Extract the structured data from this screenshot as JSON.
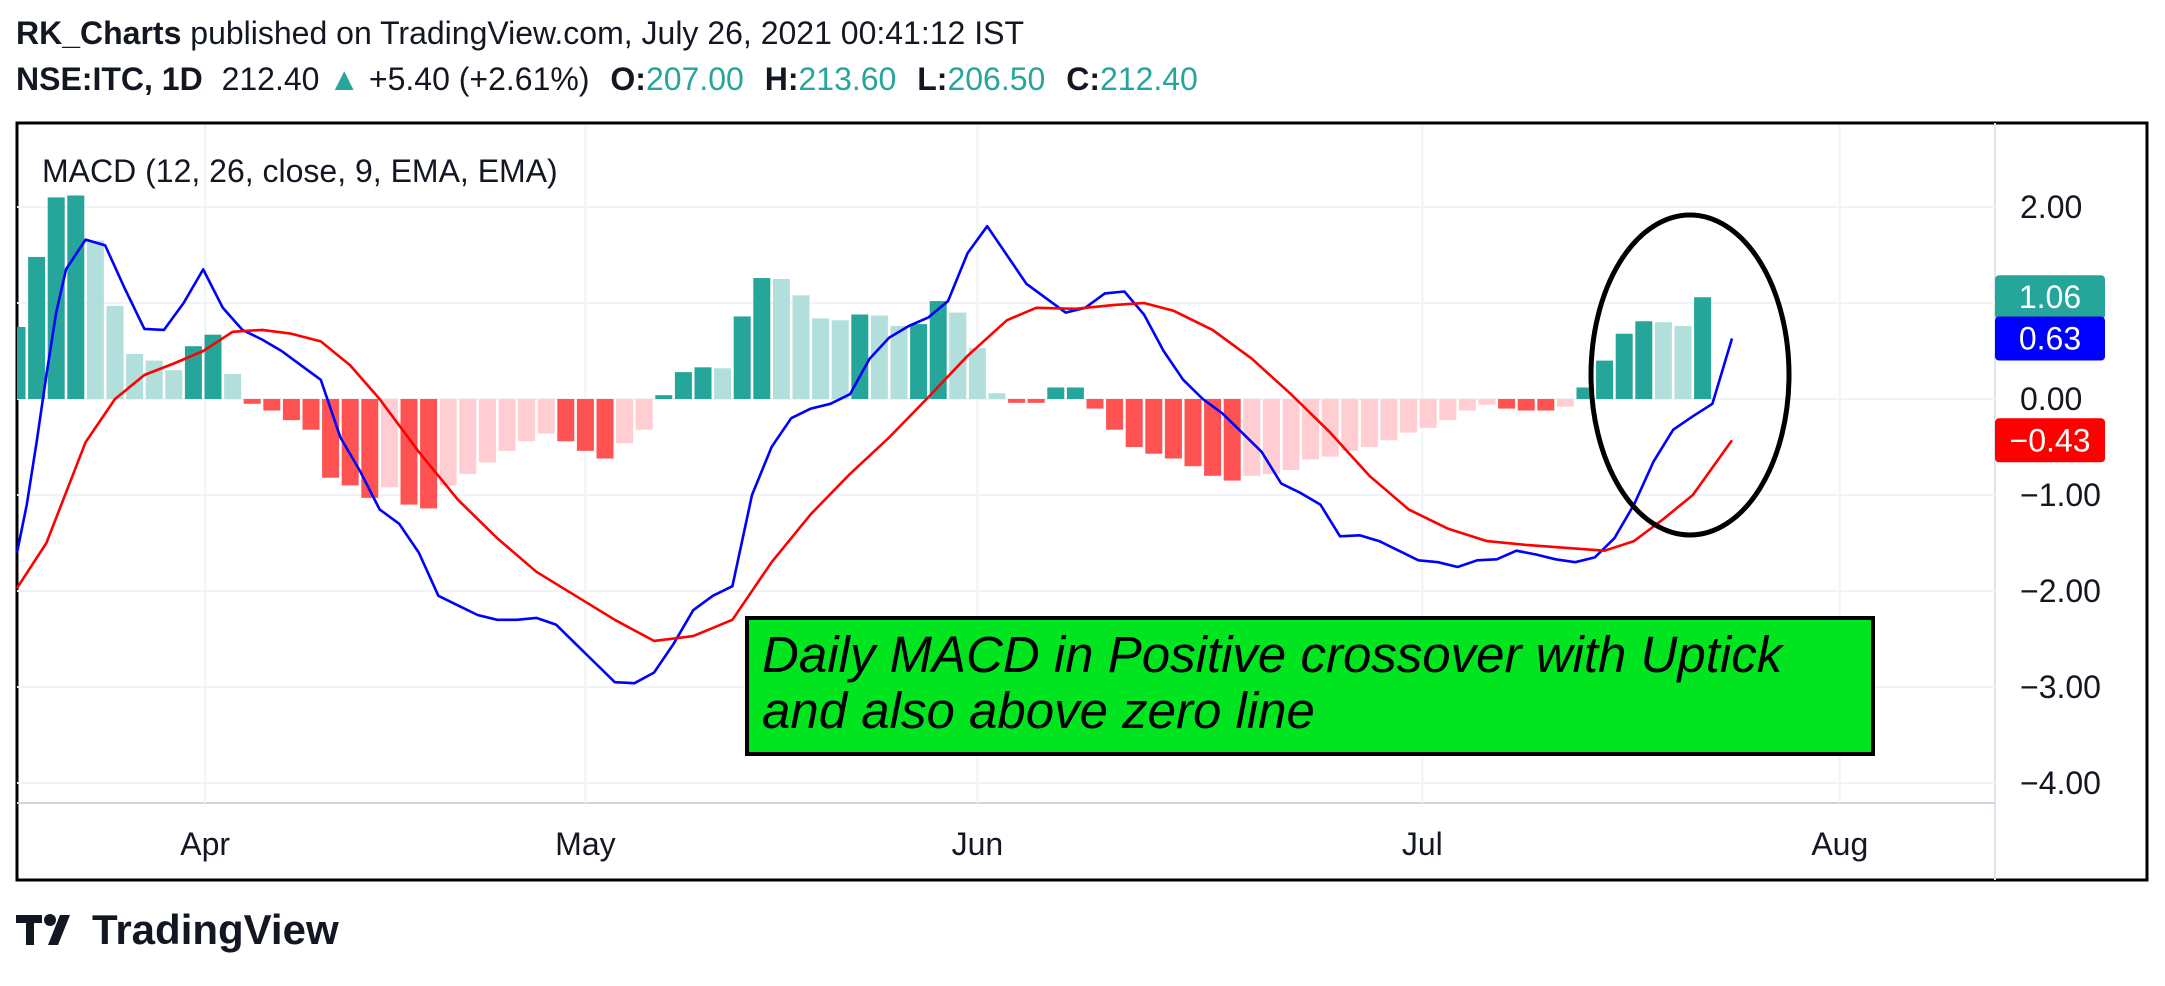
{
  "header": {
    "author": "RK_Charts",
    "published_text": "published on TradingView.com, July 26, 2021 00:41:12 IST",
    "symbol": "NSE:ITC, 1D",
    "price": "212.40",
    "change": "+5.40 (+2.61%)",
    "open_label": "O:",
    "open_value": "207.00",
    "high_label": "H:",
    "high_value": "213.60",
    "low_label": "L:",
    "low_value": "206.50",
    "close_label": "C:",
    "close_value": "212.40"
  },
  "chart_data": {
    "type": "bar",
    "title": "MACD (12, 26, close, 9, EMA, EMA)",
    "ylim": [
      -4.3,
      2.0
    ],
    "yticks": [
      "2.00",
      "1.00",
      "0.00",
      "−1.00",
      "−2.00",
      "−3.00",
      "−4.00"
    ],
    "ytick_values": [
      2,
      1,
      0,
      -1,
      -2,
      -3,
      -4
    ],
    "xticks": [
      "Apr",
      "May",
      "Jun",
      "Jul",
      "Aug"
    ],
    "xtick_positions": [
      9.6,
      29,
      49,
      71.7,
      93
    ],
    "grid": true,
    "histogram": [
      0.75,
      1.48,
      2.1,
      2.12,
      1.65,
      0.97,
      0.47,
      0.4,
      0.3,
      0.55,
      0.67,
      0.26,
      -0.05,
      -0.12,
      -0.22,
      -0.32,
      -0.82,
      -0.9,
      -1.03,
      -0.92,
      -1.1,
      -1.14,
      -0.9,
      -0.78,
      -0.66,
      -0.54,
      -0.44,
      -0.36,
      -0.44,
      -0.54,
      -0.62,
      -0.46,
      -0.32,
      0.04,
      0.28,
      0.33,
      0.32,
      0.86,
      1.26,
      1.25,
      1.08,
      0.84,
      0.82,
      0.88,
      0.87,
      0.76,
      0.78,
      1.02,
      0.9,
      0.53,
      0.06,
      -0.04,
      -0.04,
      0.12,
      0.12,
      -0.1,
      -0.32,
      -0.5,
      -0.57,
      -0.62,
      -0.7,
      -0.8,
      -0.85,
      -0.8,
      -0.78,
      -0.74,
      -0.63,
      -0.6,
      -0.54,
      -0.5,
      -0.43,
      -0.35,
      -0.3,
      -0.22,
      -0.12,
      -0.06,
      -0.1,
      -0.12,
      -0.12,
      -0.08,
      0.12,
      0.4,
      0.68,
      0.81,
      0.8,
      0.76,
      1.06
    ],
    "series": [
      {
        "name": "MACD",
        "color": "#0000ff",
        "points": [
          [
            0,
            -1.6
          ],
          [
            0.5,
            -1.1
          ],
          [
            1,
            -0.45
          ],
          [
            1.5,
            0.25
          ],
          [
            2,
            0.9
          ],
          [
            2.5,
            1.35
          ],
          [
            3.5,
            1.66
          ],
          [
            4.5,
            1.6
          ],
          [
            5.5,
            1.15
          ],
          [
            6.5,
            0.73
          ],
          [
            7.5,
            0.72
          ],
          [
            8.5,
            1.0
          ],
          [
            9.5,
            1.35
          ],
          [
            10.5,
            0.95
          ],
          [
            11.5,
            0.72
          ],
          [
            12.5,
            0.62
          ],
          [
            13.5,
            0.5
          ],
          [
            14.5,
            0.35
          ],
          [
            15.5,
            0.2
          ],
          [
            16.5,
            -0.4
          ],
          [
            17.5,
            -0.75
          ],
          [
            18.5,
            -1.15
          ],
          [
            19.5,
            -1.3
          ],
          [
            20.5,
            -1.6
          ],
          [
            21.5,
            -2.05
          ],
          [
            22.5,
            -2.15
          ],
          [
            23.5,
            -2.25
          ],
          [
            24.5,
            -2.3
          ],
          [
            25.5,
            -2.3
          ],
          [
            26.5,
            -2.28
          ],
          [
            27.5,
            -2.35
          ],
          [
            28.5,
            -2.55
          ],
          [
            29.5,
            -2.75
          ],
          [
            30.5,
            -2.95
          ],
          [
            31.5,
            -2.96
          ],
          [
            32.5,
            -2.85
          ],
          [
            33.5,
            -2.55
          ],
          [
            34.5,
            -2.2
          ],
          [
            35.5,
            -2.05
          ],
          [
            36.5,
            -1.95
          ],
          [
            37.5,
            -1.0
          ],
          [
            38.5,
            -0.5
          ],
          [
            39.5,
            -0.2
          ],
          [
            40.5,
            -0.1
          ],
          [
            41.5,
            -0.05
          ],
          [
            42.5,
            0.05
          ],
          [
            43.5,
            0.42
          ],
          [
            44.5,
            0.64
          ],
          [
            45.5,
            0.76
          ],
          [
            46.5,
            0.85
          ],
          [
            47.5,
            1.02
          ],
          [
            48.5,
            1.52
          ],
          [
            49.5,
            1.8
          ],
          [
            50.5,
            1.5
          ],
          [
            51.5,
            1.2
          ],
          [
            52.5,
            1.05
          ],
          [
            53.5,
            0.9
          ],
          [
            54.5,
            0.95
          ],
          [
            55.5,
            1.1
          ],
          [
            56.5,
            1.12
          ],
          [
            57.5,
            0.88
          ],
          [
            58.5,
            0.5
          ],
          [
            59.5,
            0.2
          ],
          [
            60.5,
            0.0
          ],
          [
            61.5,
            -0.15
          ],
          [
            62.5,
            -0.35
          ],
          [
            63.5,
            -0.55
          ],
          [
            64.5,
            -0.88
          ],
          [
            65.5,
            -0.98
          ],
          [
            66.5,
            -1.1
          ],
          [
            67.5,
            -1.43
          ],
          [
            68.5,
            -1.42
          ],
          [
            69.5,
            -1.48
          ],
          [
            70.5,
            -1.58
          ],
          [
            71.5,
            -1.68
          ],
          [
            72.5,
            -1.7
          ],
          [
            73.5,
            -1.75
          ],
          [
            74.5,
            -1.68
          ],
          [
            75.5,
            -1.67
          ],
          [
            76.5,
            -1.58
          ],
          [
            77.5,
            -1.62
          ],
          [
            78.5,
            -1.67
          ],
          [
            79.5,
            -1.7
          ],
          [
            80.5,
            -1.65
          ],
          [
            81.5,
            -1.45
          ],
          [
            82.5,
            -1.1
          ],
          [
            83.5,
            -0.65
          ],
          [
            84.5,
            -0.32
          ],
          [
            85.5,
            -0.18
          ],
          [
            86.5,
            -0.05
          ],
          [
            87.5,
            0.63
          ]
        ]
      },
      {
        "name": "Signal",
        "color": "#ff0000",
        "points": [
          [
            0,
            -1.97
          ],
          [
            1.5,
            -1.5
          ],
          [
            3.5,
            -0.45
          ],
          [
            5,
            0.0
          ],
          [
            6.5,
            0.25
          ],
          [
            8,
            0.37
          ],
          [
            9.5,
            0.5
          ],
          [
            11,
            0.7
          ],
          [
            12.5,
            0.72
          ],
          [
            14,
            0.68
          ],
          [
            15.5,
            0.6
          ],
          [
            17,
            0.35
          ],
          [
            18.5,
            0.0
          ],
          [
            20.5,
            -0.55
          ],
          [
            22.5,
            -1.05
          ],
          [
            24.5,
            -1.45
          ],
          [
            26.5,
            -1.8
          ],
          [
            28.5,
            -2.05
          ],
          [
            30.5,
            -2.3
          ],
          [
            32.5,
            -2.52
          ],
          [
            34.5,
            -2.47
          ],
          [
            36.5,
            -2.3
          ],
          [
            38.5,
            -1.7
          ],
          [
            40.5,
            -1.2
          ],
          [
            42.5,
            -0.78
          ],
          [
            44.5,
            -0.4
          ],
          [
            46.5,
            0.02
          ],
          [
            48.5,
            0.45
          ],
          [
            50.5,
            0.82
          ],
          [
            52,
            0.95
          ],
          [
            54,
            0.94
          ],
          [
            56,
            0.98
          ],
          [
            57.5,
            1.0
          ],
          [
            59,
            0.92
          ],
          [
            61,
            0.72
          ],
          [
            63,
            0.42
          ],
          [
            65,
            0.05
          ],
          [
            67,
            -0.35
          ],
          [
            69,
            -0.8
          ],
          [
            71,
            -1.15
          ],
          [
            73,
            -1.35
          ],
          [
            75,
            -1.48
          ],
          [
            77,
            -1.52
          ],
          [
            79,
            -1.55
          ],
          [
            81,
            -1.58
          ],
          [
            82.5,
            -1.48
          ],
          [
            84,
            -1.25
          ],
          [
            85.5,
            -1.0
          ],
          [
            87.5,
            -0.43
          ]
        ]
      }
    ],
    "last_values": [
      {
        "label": "1.06",
        "value": 1.06,
        "color": "#26a69a"
      },
      {
        "label": "0.63",
        "value": 0.63,
        "color": "#0000ff"
      },
      {
        "label": "−0.43",
        "value": -0.43,
        "color": "#ff0000"
      }
    ],
    "annotation": {
      "line1": "Daily MACD in Positive crossover with Uptick",
      "line2": "and also above zero line",
      "bg_color": "#00e51f"
    }
  },
  "footer": {
    "brand": "TradingView"
  }
}
